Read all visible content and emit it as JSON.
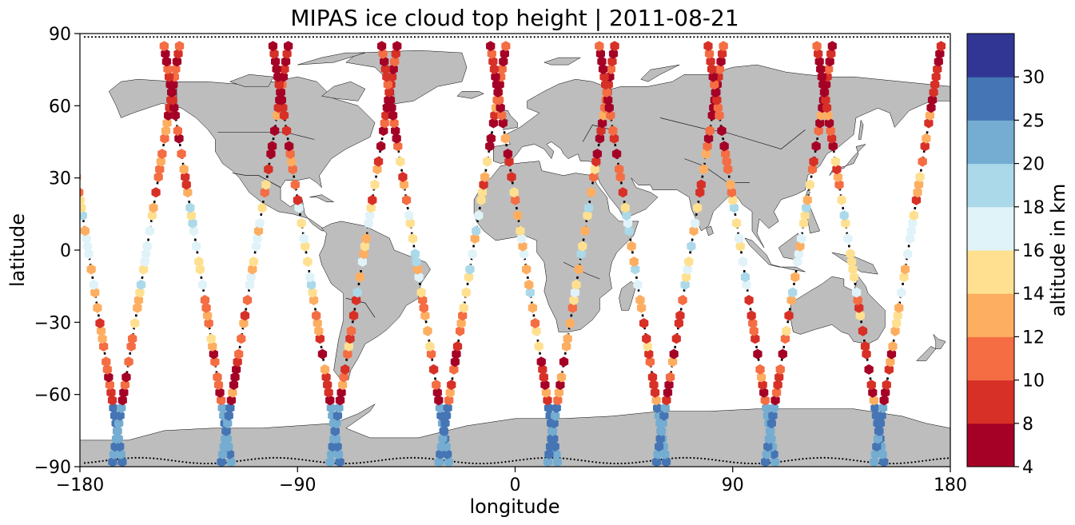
{
  "title": "MIPAS ice cloud top height | 2011-08-21",
  "x_axis": {
    "label": "longitude",
    "range": [
      -180,
      180
    ],
    "ticks": [
      -180,
      -90,
      0,
      90,
      180
    ],
    "tick_labels": [
      "−180",
      "−90",
      "0",
      "90",
      "180"
    ]
  },
  "y_axis": {
    "label": "latitude",
    "range": [
      -90,
      90
    ],
    "ticks": [
      90,
      60,
      30,
      0,
      -30,
      -60,
      -90
    ],
    "tick_labels": [
      "90",
      "60",
      "30",
      "0",
      "−30",
      "−60",
      "−90"
    ]
  },
  "colorbar": {
    "label": "altitude in km",
    "bounds": [
      4,
      8,
      10,
      12,
      14,
      16,
      18,
      20,
      25,
      30
    ],
    "tick_labels": [
      "4",
      "8",
      "10",
      "12",
      "14",
      "16",
      "18",
      "20",
      "25",
      "30"
    ],
    "colors": [
      "#a50026",
      "#d73027",
      "#f46d43",
      "#fdae61",
      "#fee090",
      "#e0f3f8",
      "#abd9e9",
      "#74add1",
      "#4575b4",
      "#313695"
    ]
  },
  "map": {
    "projection": "plate-carree",
    "land_color": "#bdbdbd",
    "ocean_color": "#ffffff"
  },
  "chart_data": {
    "type": "scatter",
    "marker": "hexagon",
    "xlim": [
      -180,
      180
    ],
    "ylim": [
      -90,
      90
    ],
    "tracks": [
      {
        "lon0": -177,
        "dir": 1
      },
      {
        "lon0": -152,
        "dir": -1
      },
      {
        "lon0": -132,
        "dir": 1
      },
      {
        "lon0": -107,
        "dir": -1
      },
      {
        "lon0": -87,
        "dir": 1
      },
      {
        "lon0": -62,
        "dir": -1
      },
      {
        "lon0": -42,
        "dir": 1
      },
      {
        "lon0": -17,
        "dir": -1
      },
      {
        "lon0": 3,
        "dir": 1
      },
      {
        "lon0": 28,
        "dir": -1
      },
      {
        "lon0": 48,
        "dir": 1
      },
      {
        "lon0": 73,
        "dir": -1
      },
      {
        "lon0": 93,
        "dir": 1
      },
      {
        "lon0": 118,
        "dir": -1
      },
      {
        "lon0": 138,
        "dir": 1
      },
      {
        "lon0": 163,
        "dir": -1
      }
    ]
  }
}
